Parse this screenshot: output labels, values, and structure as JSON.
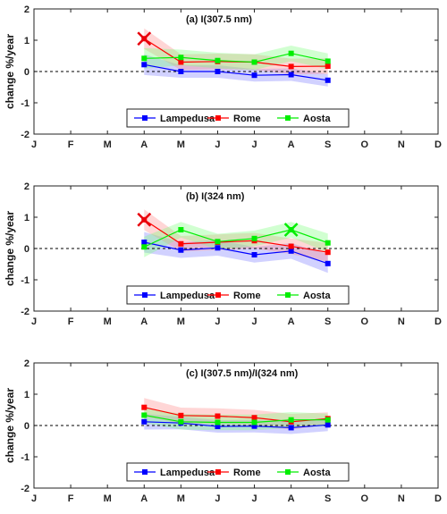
{
  "colors": {
    "lampedusa": "#0000ff",
    "rome": "#ff0000",
    "aosta": "#00ee00",
    "lampedusa_band": "#7b7bff",
    "rome_band": "#ff8a8a",
    "aosta_band": "#7cff7c",
    "marker_x": "#e8000b"
  },
  "shared": {
    "ylabel": "change %/year",
    "months": [
      "J",
      "F",
      "M",
      "A",
      "M",
      "J",
      "J",
      "A",
      "S",
      "O",
      "N",
      "D"
    ],
    "yticks": [
      "2",
      "1",
      "0",
      "-1",
      "-2"
    ],
    "legend": [
      "Lampedusa",
      "Rome",
      "Aosta"
    ]
  },
  "chart_data": [
    {
      "type": "line",
      "title": "(a) I(307.5 nm)",
      "ylabel": "change %/year",
      "ylim": [
        -2,
        2
      ],
      "xlim": [
        1,
        12
      ],
      "grid": false,
      "legend_position": "bottom-center",
      "reference_line": 0,
      "x": [
        4,
        5,
        6,
        7,
        8,
        9
      ],
      "series": [
        {
          "name": "Lampedusa",
          "values": [
            0.22,
            0.0,
            0.0,
            -0.12,
            -0.1,
            -0.28
          ],
          "band_upper": [
            0.55,
            0.2,
            0.2,
            0.08,
            0.1,
            -0.08
          ],
          "band_lower": [
            -0.11,
            -0.2,
            -0.2,
            -0.32,
            -0.3,
            -0.48
          ]
        },
        {
          "name": "Rome",
          "values": [
            1.05,
            0.3,
            0.32,
            0.3,
            0.16,
            0.17
          ],
          "band_upper": [
            1.38,
            0.55,
            0.57,
            0.55,
            0.41,
            0.42
          ],
          "band_lower": [
            0.72,
            0.05,
            0.07,
            0.05,
            -0.09,
            -0.08
          ]
        },
        {
          "name": "Aosta",
          "values": [
            0.42,
            0.45,
            0.35,
            0.3,
            0.58,
            0.33
          ],
          "band_upper": [
            0.75,
            0.7,
            0.6,
            0.55,
            0.83,
            0.58
          ],
          "band_lower": [
            0.09,
            0.2,
            0.1,
            0.05,
            0.33,
            0.08
          ]
        }
      ],
      "annotations": [
        {
          "marker": "x",
          "series": "Rome",
          "x": 4,
          "y": 1.05
        }
      ]
    },
    {
      "type": "line",
      "title": "(b) I(324 nm)",
      "ylabel": "change %/year",
      "ylim": [
        -2,
        2
      ],
      "xlim": [
        1,
        12
      ],
      "grid": false,
      "legend_position": "bottom-center",
      "reference_line": 0,
      "x": [
        4,
        5,
        6,
        7,
        8,
        9
      ],
      "series": [
        {
          "name": "Lampedusa",
          "values": [
            0.2,
            -0.05,
            0.02,
            -0.2,
            -0.08,
            -0.48
          ],
          "band_upper": [
            0.53,
            0.2,
            0.27,
            0.05,
            0.17,
            -0.18
          ],
          "band_lower": [
            -0.13,
            -0.3,
            -0.23,
            -0.45,
            -0.33,
            -0.78
          ]
        },
        {
          "name": "Rome",
          "values": [
            0.92,
            0.15,
            0.2,
            0.25,
            0.07,
            -0.12
          ],
          "band_upper": [
            1.25,
            0.4,
            0.45,
            0.5,
            0.32,
            0.18
          ],
          "band_lower": [
            0.59,
            -0.1,
            -0.05,
            0.0,
            -0.18,
            -0.42
          ]
        },
        {
          "name": "Aosta",
          "values": [
            0.05,
            0.6,
            0.22,
            0.32,
            0.6,
            0.18
          ],
          "band_upper": [
            0.38,
            0.85,
            0.47,
            0.57,
            0.85,
            0.48
          ],
          "band_lower": [
            -0.28,
            0.35,
            -0.03,
            0.07,
            0.35,
            -0.12
          ]
        }
      ],
      "annotations": [
        {
          "marker": "x",
          "series": "Rome",
          "x": 4,
          "y": 0.92
        },
        {
          "marker": "x",
          "series": "Aosta",
          "x": 8,
          "y": 0.6
        }
      ]
    },
    {
      "type": "line",
      "title": "(c) I(307.5 nm)/I(324 nm)",
      "ylabel": "change %/year",
      "ylim": [
        -2,
        2
      ],
      "xlim": [
        1,
        12
      ],
      "grid": false,
      "legend_position": "bottom-center",
      "reference_line": 0,
      "x": [
        4,
        5,
        6,
        7,
        8,
        9
      ],
      "series": [
        {
          "name": "Lampedusa",
          "values": [
            0.12,
            0.08,
            -0.03,
            -0.02,
            -0.07,
            0.02
          ],
          "band_upper": [
            0.37,
            0.28,
            0.17,
            0.18,
            0.13,
            0.22
          ],
          "band_lower": [
            -0.13,
            -0.12,
            -0.23,
            -0.22,
            -0.27,
            -0.18
          ]
        },
        {
          "name": "Rome",
          "values": [
            0.58,
            0.32,
            0.3,
            0.25,
            0.12,
            0.22
          ],
          "band_upper": [
            0.88,
            0.57,
            0.55,
            0.5,
            0.37,
            0.42
          ],
          "band_lower": [
            0.28,
            0.07,
            0.05,
            0.0,
            -0.13,
            0.02
          ]
        },
        {
          "name": "Aosta",
          "values": [
            0.33,
            0.12,
            0.1,
            0.1,
            0.18,
            0.18
          ],
          "band_upper": [
            0.58,
            0.37,
            0.35,
            0.35,
            0.43,
            0.38
          ],
          "band_lower": [
            0.08,
            -0.13,
            -0.15,
            -0.15,
            -0.07,
            -0.02
          ]
        }
      ]
    }
  ]
}
